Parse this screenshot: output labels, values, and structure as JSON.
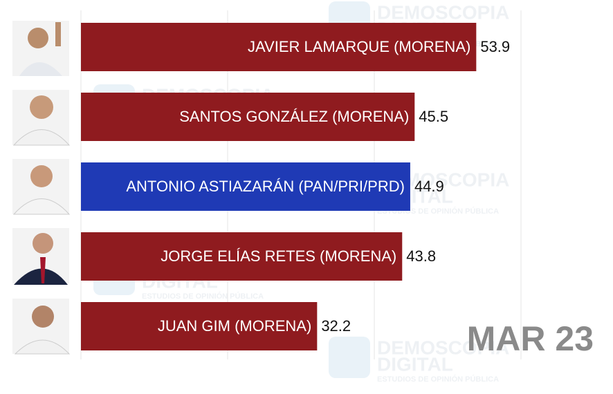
{
  "chart_data": {
    "type": "bar",
    "orientation": "horizontal",
    "categories": [
      "JAVIER LAMARQUE (MORENA)",
      "SANTOS GONZÁLEZ (MORENA)",
      "ANTONIO ASTIAZARÁN (PAN/PRI/PRD)",
      "JORGE ELÍAS RETES (MORENA)",
      "JUAN GIM (MORENA)"
    ],
    "values": [
      53.9,
      45.5,
      44.9,
      43.8,
      32.2
    ],
    "colors": [
      "#8f1b1f",
      "#8f1b1f",
      "#1f3ab5",
      "#8f1b1f",
      "#8f1b1f"
    ],
    "xlim": [
      0,
      60
    ],
    "xticks": [
      0,
      20,
      40,
      60
    ],
    "grid": true,
    "annotation": "MAR 23",
    "watermark": {
      "line1": "DEMOSCOPIA",
      "line2": "DIGITAL",
      "line3": "ESTUDIOS DE OPINIÓN PÚBLICA"
    }
  }
}
